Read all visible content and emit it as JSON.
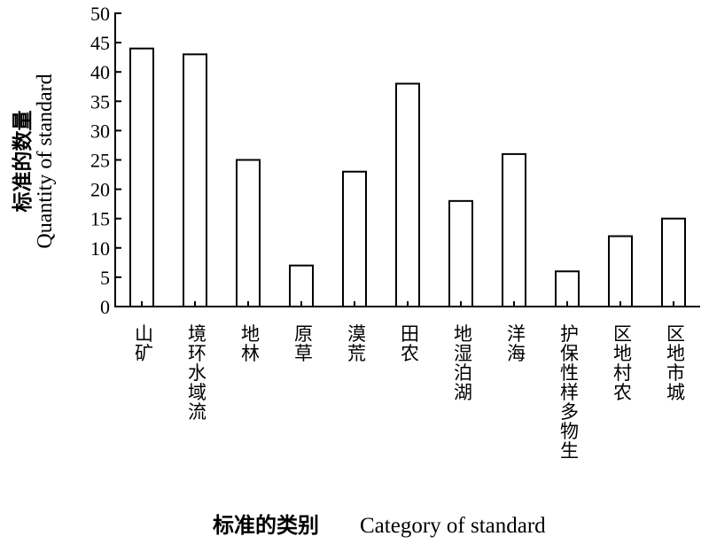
{
  "chart_data": {
    "type": "bar",
    "categories": [
      "矿山",
      "流域水环境",
      "林地",
      "草原",
      "荒漠",
      "农田",
      "湖泊湿地",
      "海洋",
      "生物多样性保护",
      "农村地区",
      "城市地区"
    ],
    "values": [
      44,
      43,
      25,
      7,
      23,
      38,
      18,
      26,
      6,
      12,
      15
    ],
    "ylim": [
      0,
      50
    ],
    "yticks": [
      0,
      5,
      10,
      15,
      20,
      25,
      30,
      35,
      40,
      45,
      50
    ],
    "ylabel_cn": "标准的数量",
    "ylabel_en": "Quantity of standard",
    "xlabel_cn": "标准的类别",
    "xlabel_en": "Category of standard",
    "grid": false,
    "bar_fill": "#ffffff",
    "bar_stroke": "#000000"
  }
}
